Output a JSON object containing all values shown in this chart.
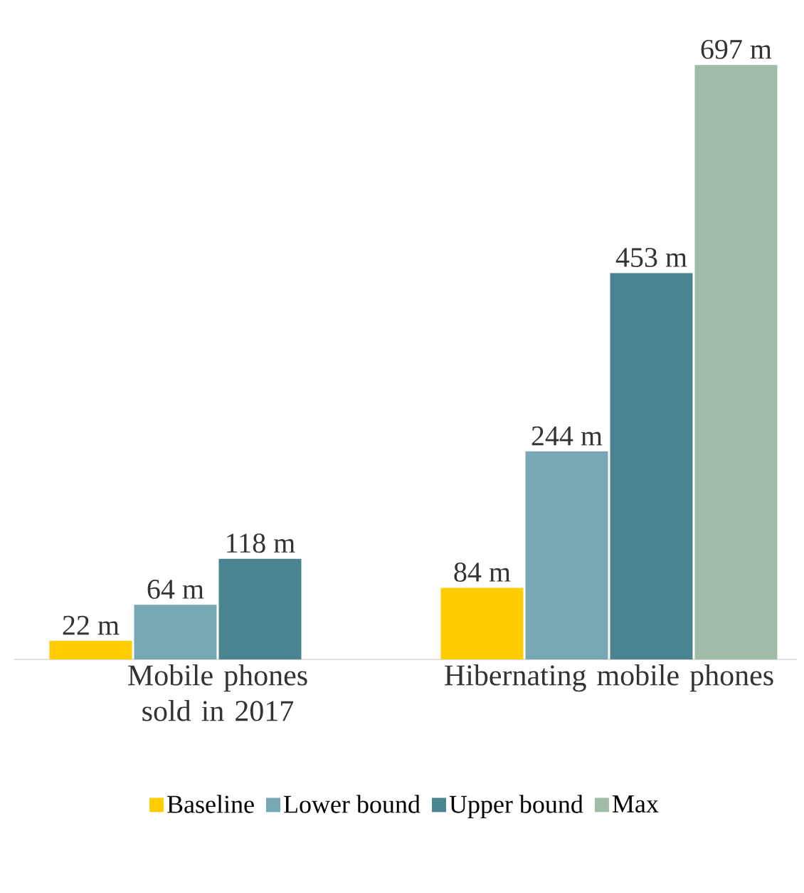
{
  "chart_data": {
    "type": "bar",
    "categories": [
      "Mobile phones sold in 2017",
      "Hibernating mobile phones"
    ],
    "series": [
      {
        "name": "Baseline",
        "color": "#ffcc00",
        "values": [
          22,
          84
        ],
        "value_labels": [
          "22 m",
          "84 m"
        ]
      },
      {
        "name": "Lower bound",
        "color": "#78a8b4",
        "values": [
          64,
          244
        ],
        "value_labels": [
          "64 m",
          "244 m"
        ]
      },
      {
        "name": "Upper bound",
        "color": "#4a8490",
        "values": [
          118,
          453
        ],
        "value_labels": [
          "118 m",
          "453 m"
        ]
      },
      {
        "name": "Max",
        "color": "#a0bca8",
        "values": [
          null,
          697
        ],
        "value_labels": [
          null,
          "697 m"
        ]
      }
    ],
    "legend": "bottom"
  }
}
